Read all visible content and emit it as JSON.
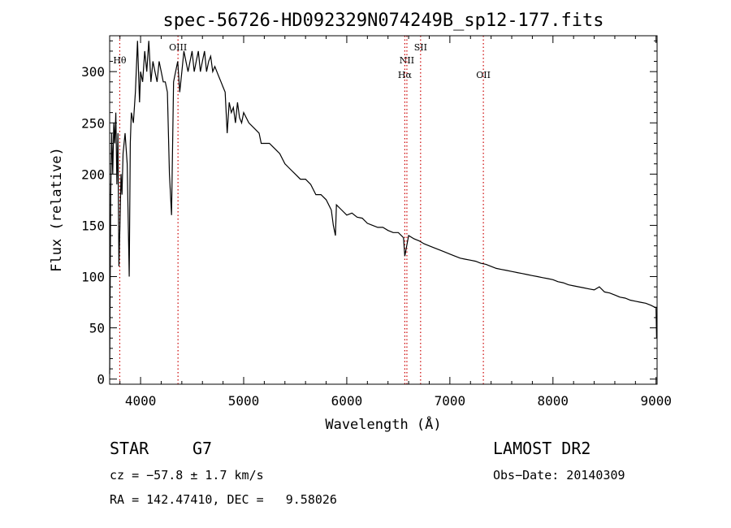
{
  "chart_data": {
    "type": "line",
    "title": "spec-56726-HD092329N074249B_sp12-177.fits",
    "xlabel": "Wavelength (Å)",
    "ylabel": "Flux (relative)",
    "xlim": [
      3700,
      9010
    ],
    "ylim": [
      -5,
      335
    ],
    "xticks": [
      4000,
      5000,
      6000,
      7000,
      8000,
      9000
    ],
    "yticks": [
      0,
      50,
      100,
      150,
      200,
      250,
      300
    ],
    "grid": false,
    "line_color": "#000000",
    "marker_color": "#cc0000",
    "lines": [
      {
        "label": "Hθ",
        "x": 3798
      },
      {
        "label": "OIII",
        "x": 4363
      },
      {
        "label": "NII",
        "x": 6583
      },
      {
        "label": "Hα",
        "x": 6563
      },
      {
        "label": "OII",
        "x": 7325
      },
      {
        "label": "SII",
        "x": 6716
      }
    ],
    "series": [
      {
        "x": [
          3700,
          3710,
          3720,
          3730,
          3740,
          3750,
          3760,
          3770,
          3780,
          3790,
          3800,
          3810,
          3820,
          3830,
          3850,
          3870,
          3890,
          3900,
          3910,
          3930,
          3950,
          3970,
          3990,
          4000,
          4020,
          4040,
          4060,
          4080,
          4100,
          4120,
          4140,
          4160,
          4180,
          4200,
          4220,
          4240,
          4260,
          4280,
          4300,
          4320,
          4340,
          4360,
          4380,
          4400,
          4420,
          4440,
          4460,
          4480,
          4500,
          4520,
          4540,
          4560,
          4580,
          4600,
          4620,
          4640,
          4660,
          4680,
          4700,
          4720,
          4740,
          4760,
          4780,
          4800,
          4820,
          4840,
          4860,
          4880,
          4900,
          4920,
          4940,
          4960,
          4980,
          5000,
          5050,
          5100,
          5150,
          5170,
          5200,
          5250,
          5300,
          5350,
          5400,
          5450,
          5500,
          5550,
          5600,
          5650,
          5700,
          5750,
          5800,
          5850,
          5870,
          5890,
          5900,
          5950,
          6000,
          6050,
          6100,
          6150,
          6200,
          6250,
          6300,
          6350,
          6400,
          6450,
          6500,
          6550,
          6563,
          6600,
          6650,
          6700,
          6750,
          6800,
          6850,
          6900,
          6950,
          7000,
          7050,
          7100,
          7150,
          7200,
          7250,
          7300,
          7350,
          7400,
          7450,
          7500,
          7550,
          7600,
          7650,
          7700,
          7750,
          7800,
          7850,
          7900,
          7950,
          8000,
          8050,
          8100,
          8150,
          8200,
          8250,
          8300,
          8350,
          8400,
          8450,
          8500,
          8550,
          8600,
          8650,
          8700,
          8750,
          8800,
          8850,
          8900,
          8950,
          8990,
          9000,
          9005
        ],
        "y": [
          5,
          180,
          240,
          200,
          250,
          230,
          260,
          190,
          240,
          110,
          150,
          200,
          180,
          220,
          240,
          210,
          100,
          230,
          260,
          250,
          280,
          330,
          270,
          300,
          290,
          320,
          300,
          330,
          290,
          310,
          300,
          290,
          310,
          300,
          290,
          290,
          280,
          200,
          160,
          290,
          300,
          310,
          280,
          300,
          320,
          310,
          300,
          310,
          320,
          300,
          310,
          320,
          300,
          310,
          320,
          300,
          310,
          315,
          300,
          305,
          300,
          295,
          290,
          285,
          280,
          240,
          270,
          260,
          265,
          250,
          270,
          255,
          250,
          260,
          250,
          245,
          240,
          230,
          230,
          230,
          225,
          220,
          210,
          205,
          200,
          195,
          195,
          190,
          180,
          180,
          175,
          165,
          150,
          140,
          170,
          165,
          160,
          162,
          158,
          157,
          152,
          150,
          148,
          148,
          145,
          143,
          143,
          138,
          120,
          140,
          137,
          135,
          132,
          130,
          128,
          126,
          124,
          122,
          120,
          118,
          117,
          116,
          115,
          113,
          112,
          110,
          108,
          107,
          106,
          105,
          104,
          103,
          102,
          101,
          100,
          99,
          98,
          97,
          95,
          94,
          92,
          91,
          90,
          89,
          88,
          87,
          90,
          85,
          84,
          82,
          80,
          79,
          77,
          76,
          75,
          74,
          72,
          70,
          70,
          40
        ]
      }
    ]
  },
  "footer": {
    "object_type": "STAR",
    "subclass": "G7",
    "survey": "LAMOST DR2",
    "cz": "cz = −57.8 ± 1.7 km/s",
    "obs_date": "Obs−Date: 20140309",
    "coords": "RA = 142.47410, DEC =   9.58026"
  }
}
